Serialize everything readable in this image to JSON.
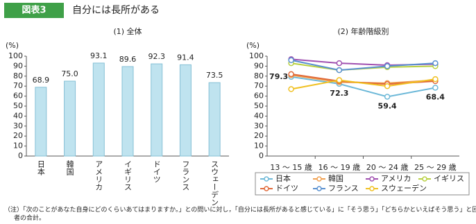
{
  "header": {
    "badge": "図表3",
    "title": "自分には長所がある"
  },
  "note": "（注）「次のことがあなた自身にどのくらいあてはまりますか。」との問いに対し，「自分には長所があると感じている」に「そう思う」「どちらかといえばそう思う」と回答した者の合計。",
  "chart_data": [
    {
      "type": "bar",
      "title": "(1) 全体",
      "ylabel": "(%)",
      "categories": [
        "日本",
        "韓国",
        "アメリカ",
        "イギリス",
        "ドイツ",
        "フランス",
        "スウェーデン"
      ],
      "values": [
        68.9,
        75.0,
        93.1,
        89.6,
        92.3,
        91.4,
        73.5
      ],
      "value_labels": [
        "68.9",
        "75.0",
        "93.1",
        "89.6",
        "92.3",
        "91.4",
        "73.5"
      ],
      "color": "#bfe3ef",
      "ylim": [
        0,
        100
      ],
      "yticks": [
        0,
        10,
        20,
        30,
        40,
        50,
        60,
        70,
        80,
        90,
        100
      ]
    },
    {
      "type": "line",
      "title": "(2) 年齢階級別",
      "ylabel": "(%)",
      "categories": [
        "13 ～ 15 歳",
        "16 ～ 19 歳",
        "20 ～ 24 歳",
        "25 ～ 29 歳"
      ],
      "series": [
        {
          "name": "日本",
          "color": "#6cb8d8",
          "values": [
            79.3,
            72.3,
            59.4,
            68.4
          ],
          "show_labels": true
        },
        {
          "name": "韓国",
          "color": "#f0a050",
          "values": [
            81,
            74,
            73,
            76
          ]
        },
        {
          "name": "アメリカ",
          "color": "#a050b0",
          "values": [
            97,
            93,
            91,
            92
          ]
        },
        {
          "name": "イギリス",
          "color": "#b8d040",
          "values": [
            93,
            86,
            89,
            90
          ]
        },
        {
          "name": "ドイツ",
          "color": "#e06838",
          "values": [
            82,
            75,
            72,
            75
          ]
        },
        {
          "name": "フランス",
          "color": "#5890d0",
          "values": [
            96,
            86,
            90,
            93
          ]
        },
        {
          "name": "スウェーデン",
          "color": "#f0c020",
          "values": [
            67,
            76,
            70,
            77
          ]
        }
      ],
      "ylim": [
        0,
        100
      ],
      "yticks": [
        0,
        10,
        20,
        30,
        40,
        50,
        60,
        70,
        80,
        90,
        100
      ]
    }
  ]
}
